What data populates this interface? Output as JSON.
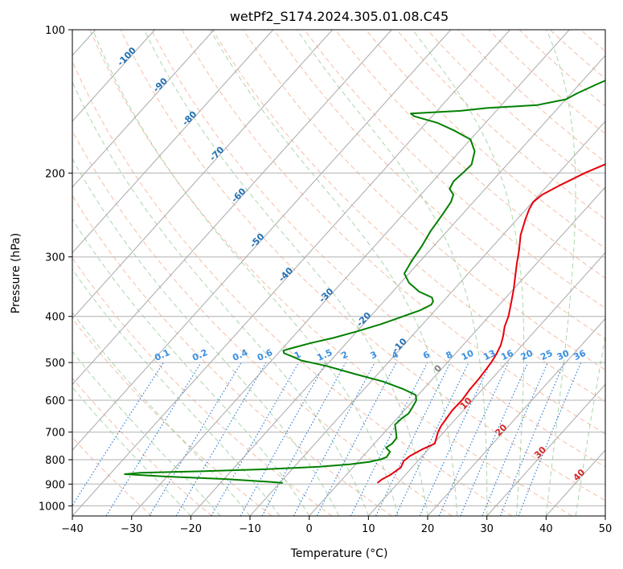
{
  "chart_data": {
    "type": "line",
    "title": "wetPf2_S174.2024.305.01.08.C45",
    "xlabel": "Temperature (°C)",
    "ylabel": "Pressure (hPa)",
    "xlim": [
      -40,
      50
    ],
    "ylim": [
      1050,
      100
    ],
    "y_scale": "log",
    "x_ticks": [
      -40,
      -30,
      -20,
      -10,
      0,
      10,
      20,
      30,
      40,
      50
    ],
    "x_tick_labels": [
      "−40",
      "−30",
      "−20",
      "−10",
      "0",
      "10",
      "20",
      "30",
      "40",
      "50"
    ],
    "y_ticks": [
      100,
      200,
      300,
      400,
      500,
      600,
      700,
      800,
      900,
      1000
    ],
    "y_tick_labels": [
      "100",
      "200",
      "300",
      "400",
      "500",
      "600",
      "700",
      "800",
      "900",
      "1000"
    ],
    "grid": true,
    "skew": true,
    "series": [
      {
        "role": "temperature",
        "color": "#e8000b",
        "points": [
          [
            6.5,
            895
          ],
          [
            6.7,
            880
          ],
          [
            7.5,
            860
          ],
          [
            8.1,
            830
          ],
          [
            7.6,
            805
          ],
          [
            7.9,
            785
          ],
          [
            9.0,
            760
          ],
          [
            10.2,
            740
          ],
          [
            9.6,
            720
          ],
          [
            9.0,
            700
          ],
          [
            8.6,
            680
          ],
          [
            8.4,
            660
          ],
          [
            8.1,
            630
          ],
          [
            8.2,
            600
          ],
          [
            7.9,
            570
          ],
          [
            7.8,
            540
          ],
          [
            7.6,
            520
          ],
          [
            7.4,
            500
          ],
          [
            7.0,
            480
          ],
          [
            6.4,
            460
          ],
          [
            5.4,
            440
          ],
          [
            4.2,
            420
          ],
          [
            3.3,
            400
          ],
          [
            1.4,
            370
          ],
          [
            0.0,
            350
          ],
          [
            -1.6,
            330
          ],
          [
            -3.3,
            310
          ],
          [
            -5.0,
            290
          ],
          [
            -7.0,
            270
          ],
          [
            -8.6,
            250
          ],
          [
            -9.5,
            238
          ],
          [
            -9.9,
            230
          ],
          [
            -9.5,
            222
          ],
          [
            -7.9,
            212
          ],
          [
            -5.6,
            200
          ],
          [
            -3.0,
            190
          ],
          [
            -0.7,
            180
          ],
          [
            3.5,
            170
          ],
          [
            10.0,
            160
          ],
          [
            14.0,
            150
          ],
          [
            17.0,
            140
          ],
          [
            20.0,
            130
          ],
          [
            23.0,
            120
          ],
          [
            27.0,
            110
          ],
          [
            32.0,
            100
          ]
        ]
      },
      {
        "role": "dewpoint",
        "color": "#008000",
        "points": [
          [
            -9.5,
            895
          ],
          [
            -12.0,
            890
          ],
          [
            -20.0,
            878
          ],
          [
            -30.0,
            868
          ],
          [
            -37.5,
            858
          ],
          [
            -35.0,
            852
          ],
          [
            -25.0,
            846
          ],
          [
            -15.0,
            838
          ],
          [
            -6.0,
            828
          ],
          [
            -1.0,
            818
          ],
          [
            2.0,
            808
          ],
          [
            3.5,
            798
          ],
          [
            4.1,
            790
          ],
          [
            3.9,
            770
          ],
          [
            2.6,
            755
          ],
          [
            3.0,
            740
          ],
          [
            2.9,
            720
          ],
          [
            1.9,
            700
          ],
          [
            0.6,
            675
          ],
          [
            0.8,
            655
          ],
          [
            1.2,
            640
          ],
          [
            0.9,
            620
          ],
          [
            0.5,
            600
          ],
          [
            -0.4,
            585
          ],
          [
            -3.5,
            568
          ],
          [
            -8.0,
            548
          ],
          [
            -14.0,
            528
          ],
          [
            -20.0,
            508
          ],
          [
            -25.0,
            495
          ],
          [
            -27.0,
            486
          ],
          [
            -29.0,
            478
          ],
          [
            -29.5,
            472
          ],
          [
            -28.8,
            468
          ],
          [
            -26.0,
            455
          ],
          [
            -23.0,
            444
          ],
          [
            -20.0,
            430
          ],
          [
            -17.0,
            415
          ],
          [
            -14.5,
            400
          ],
          [
            -12.5,
            388
          ],
          [
            -11.5,
            378
          ],
          [
            -11.7,
            372
          ],
          [
            -12.5,
            365
          ],
          [
            -15.5,
            355
          ],
          [
            -18.6,
            340
          ],
          [
            -20.8,
            325
          ],
          [
            -21.5,
            305
          ],
          [
            -22.0,
            285
          ],
          [
            -22.8,
            265
          ],
          [
            -23.3,
            245
          ],
          [
            -23.8,
            230
          ],
          [
            -24.5,
            222
          ],
          [
            -26.0,
            216
          ],
          [
            -26.5,
            208
          ],
          [
            -26.2,
            200
          ],
          [
            -26.0,
            192
          ],
          [
            -27.5,
            180
          ],
          [
            -30.0,
            170
          ],
          [
            -34.0,
            163
          ],
          [
            -38.0,
            157
          ],
          [
            -43.0,
            152
          ],
          [
            -44.0,
            150
          ],
          [
            -36.0,
            148
          ],
          [
            -32.0,
            146
          ],
          [
            -24.0,
            144
          ],
          [
            -20.0,
            140
          ],
          [
            -19.0,
            136
          ],
          [
            -17.0,
            130
          ],
          [
            -15.0,
            125
          ],
          [
            -12.0,
            120
          ],
          [
            -9.0,
            115
          ],
          [
            -6.0,
            110
          ],
          [
            -4.0,
            106
          ],
          [
            -3.0,
            100
          ]
        ]
      }
    ],
    "dry_adiabat_color": "#f0a888",
    "moist_adiabat_color": "#88c488",
    "mixing_ratio_color": "#1f77d4",
    "isotherm_label_color": "#1f6fb4",
    "isotherm_labels": [
      {
        "temp": -100,
        "text": "-100"
      },
      {
        "temp": -90,
        "text": "-90"
      },
      {
        "temp": -80,
        "text": "-80"
      },
      {
        "temp": -70,
        "text": "-70"
      },
      {
        "temp": -60,
        "text": "-60"
      },
      {
        "temp": -50,
        "text": "-50"
      },
      {
        "temp": -40,
        "text": "-40"
      },
      {
        "temp": -30,
        "text": "-30"
      },
      {
        "temp": -20,
        "text": "-20"
      },
      {
        "temp": -10,
        "text": "-10"
      }
    ],
    "warm_isotherm_labels": [
      {
        "temp": 0,
        "text": "0",
        "color": "#808080"
      },
      {
        "temp": 10,
        "text": "10",
        "color": "#d62728"
      },
      {
        "temp": 20,
        "text": "20",
        "color": "#d62728"
      },
      {
        "temp": 30,
        "text": "30",
        "color": "#d62728"
      },
      {
        "temp": 40,
        "text": "40",
        "color": "#d62728"
      }
    ],
    "mixing_ratio_labels": [
      "0.1",
      "0.2",
      "0.4",
      "0.6",
      "1",
      "1.5",
      "2",
      "3",
      "4",
      "6",
      "8",
      "10",
      "13",
      "16",
      "20",
      "25",
      "30",
      "36"
    ]
  }
}
